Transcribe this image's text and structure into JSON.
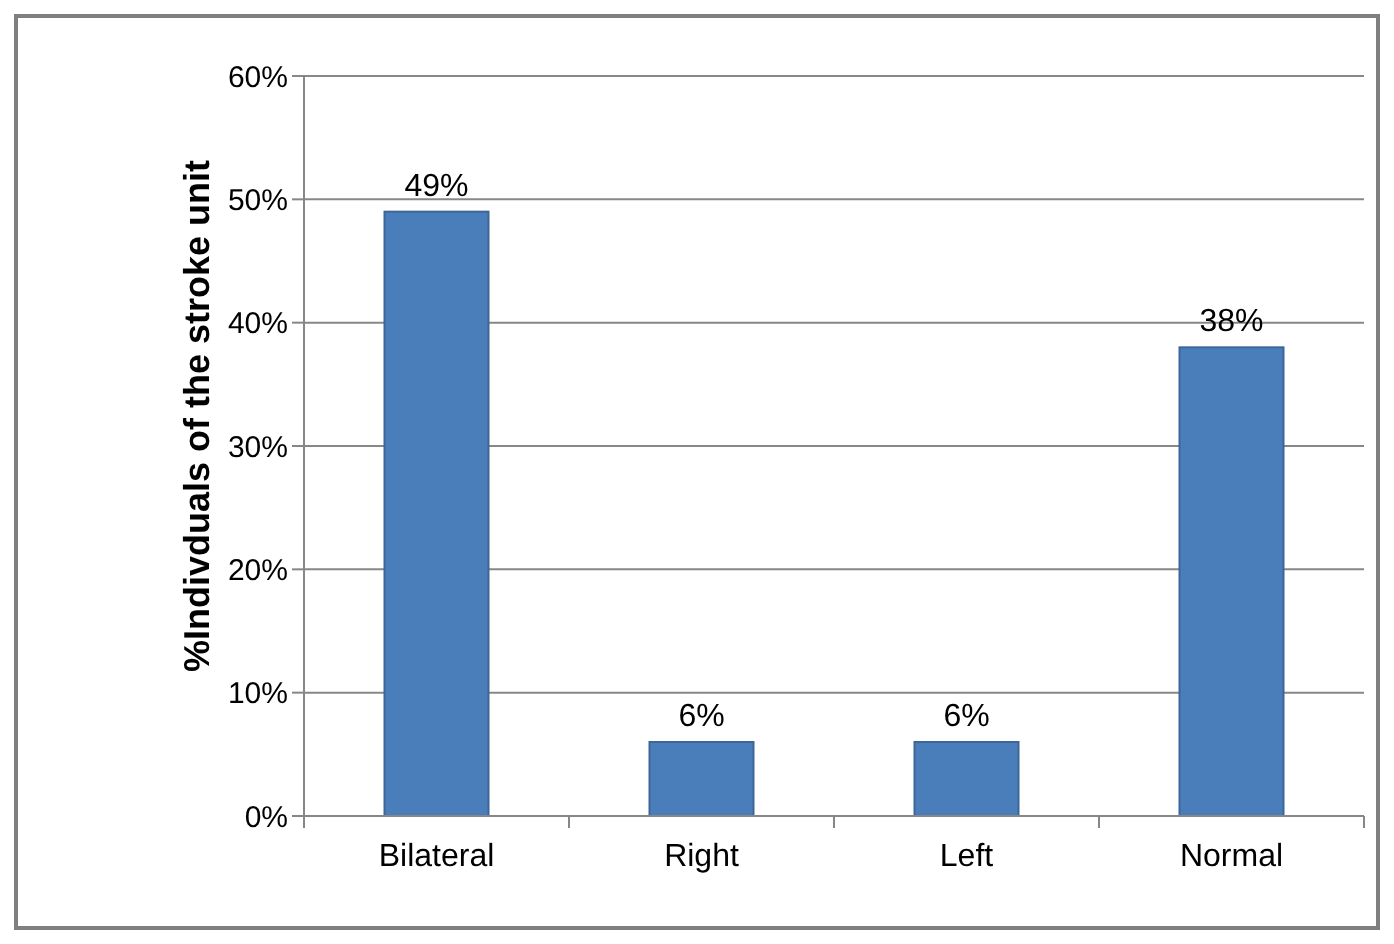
{
  "chart_data": {
    "type": "bar",
    "ylabel": "%Indivduals of the stroke unit",
    "categories": [
      "Bilateral",
      "Right",
      "Left",
      "Normal"
    ],
    "values": [
      49,
      6,
      6,
      38
    ],
    "value_labels": [
      "49%",
      "6%",
      "6%",
      "38%"
    ],
    "color": "#4a7ebb",
    "ylim": [
      0,
      60
    ],
    "yticks": [
      {
        "value": 0,
        "label": "0%"
      },
      {
        "value": 10,
        "label": "10%"
      },
      {
        "value": 20,
        "label": "20%"
      },
      {
        "value": 30,
        "label": "30%"
      },
      {
        "value": 40,
        "label": "40%"
      },
      {
        "value": 50,
        "label": "50%"
      },
      {
        "value": 60,
        "label": "60%"
      }
    ],
    "grid": "y"
  }
}
